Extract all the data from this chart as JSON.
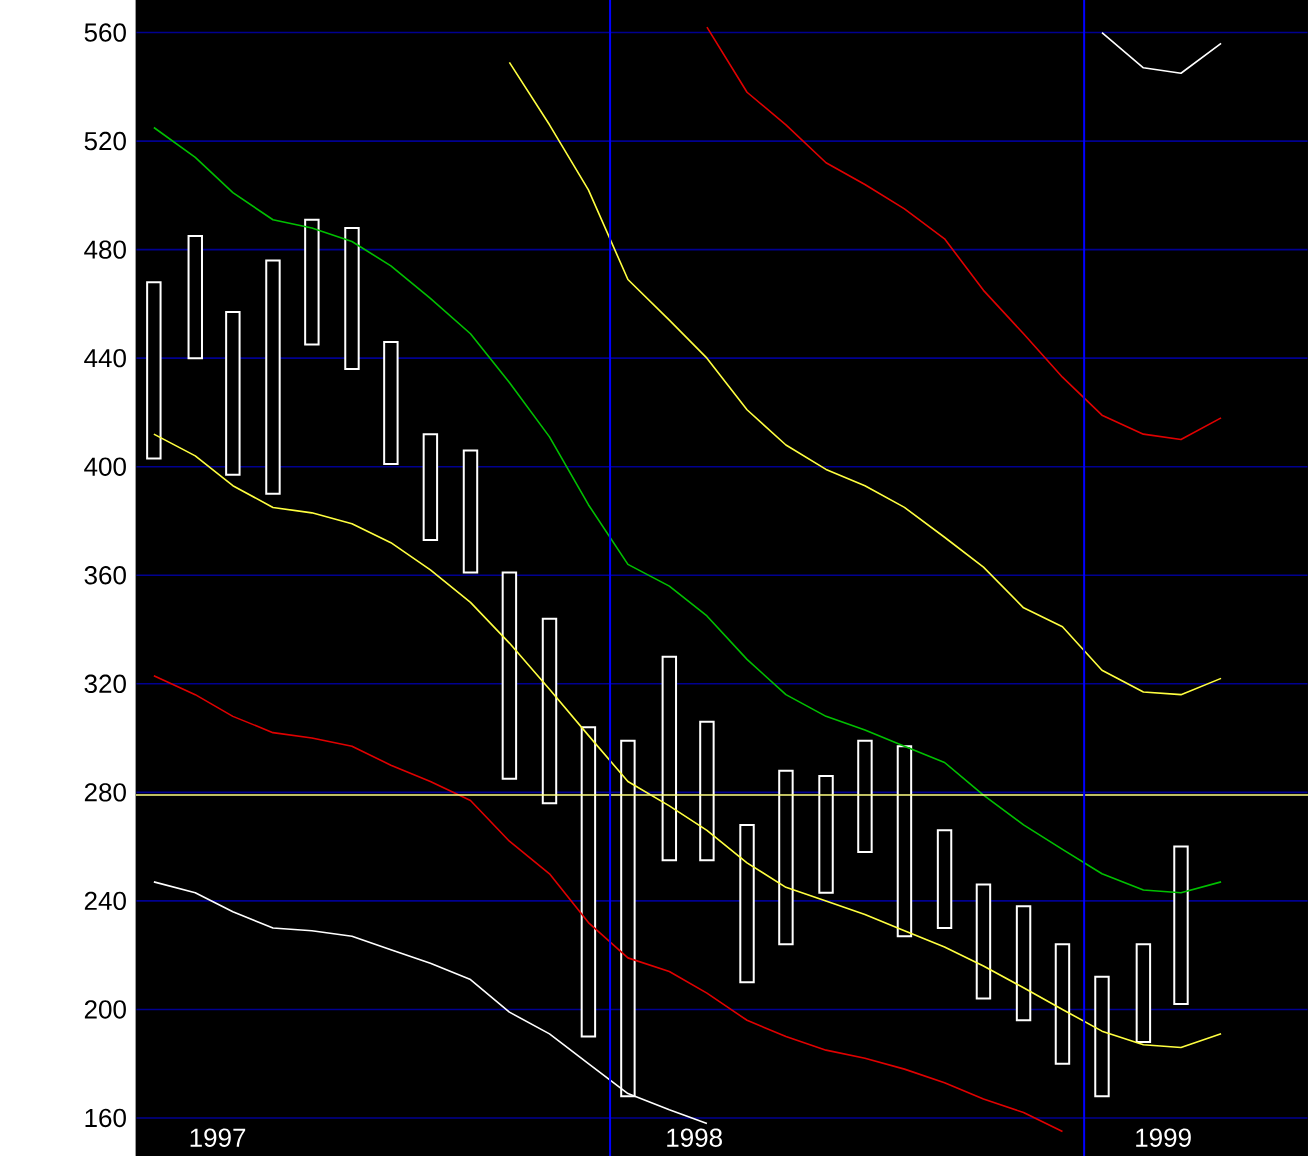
{
  "chart_data": {
    "type": "bar",
    "x": [
      "1997-01-15",
      "1997-02-15",
      "1997-03-15",
      "1997-04-15",
      "1997-05-15",
      "1997-06-15",
      "1997-07-15",
      "1997-08-15",
      "1997-09-15",
      "1997-10-15",
      "1997-11-15",
      "1997-12-15",
      "1998-01-15",
      "1998-02-15",
      "1998-03-15",
      "1998-04-15",
      "1998-05-15",
      "1998-06-15",
      "1998-07-15",
      "1998-08-15",
      "1998-09-15",
      "1998-10-15",
      "1998-11-15",
      "1998-12-15",
      "1999-01-15",
      "1999-02-15",
      "1999-03-15"
    ],
    "xlim": [
      "1997-01-01",
      "1999-06-21"
    ],
    "ylim": [
      146,
      572
    ],
    "xticks": [
      {
        "value": "1997-03-03",
        "label": "1997"
      },
      {
        "value": "1998-03-05",
        "label": "1998"
      },
      {
        "value": "1999-03-01",
        "label": "1999"
      }
    ],
    "yticks": [
      160,
      200,
      240,
      280,
      320,
      360,
      400,
      440,
      480,
      520,
      560
    ],
    "grid": "y",
    "ref_lines": [
      {
        "axis": "y",
        "value": 279,
        "color": "#ffff80"
      },
      {
        "axis": "x",
        "value": "1998-01-01",
        "color": "#0000ff"
      },
      {
        "axis": "x",
        "value": "1999-01-01",
        "color": "#0000ff"
      }
    ],
    "series": [
      {
        "color": "#ffffff",
        "base": [
          403,
          440,
          397,
          390,
          445,
          436,
          401,
          373,
          361,
          285,
          276,
          190,
          168,
          255,
          255,
          210,
          224,
          243,
          258,
          227,
          230,
          204,
          196,
          180,
          168,
          188,
          202
        ],
        "values": [
          65,
          45,
          60,
          86,
          46,
          52,
          45,
          39,
          45,
          76,
          68,
          114,
          131,
          75,
          51,
          58,
          64,
          43,
          41,
          70,
          36,
          42,
          42,
          44,
          44,
          36,
          58
        ]
      },
      {
        "type": "line",
        "color": "#00c000",
        "x": [
          "1997-01-15",
          "1997-02-15",
          "1997-03-15",
          "1997-04-15",
          "1997-05-15",
          "1997-06-15",
          "1997-07-15",
          "1997-08-15",
          "1997-09-15",
          "1997-10-15",
          "1997-11-15",
          "1997-12-15",
          "1998-01-15",
          "1998-02-15",
          "1998-03-15",
          "1998-04-15",
          "1998-05-15",
          "1998-06-15",
          "1998-07-15",
          "1998-08-15",
          "1998-09-15",
          "1998-10-15",
          "1998-11-15",
          "1998-12-15",
          "1999-01-15",
          "1999-02-15",
          "1999-03-15",
          "1999-04-15"
        ],
        "values": [
          525,
          514,
          501,
          491,
          488,
          483,
          474,
          462,
          449,
          431,
          411,
          386,
          364,
          356,
          345,
          329,
          316,
          308,
          303,
          297,
          291,
          279,
          268,
          259,
          250,
          244,
          243,
          247
        ]
      },
      {
        "type": "line",
        "color": "#ffff40",
        "x": [
          "1997-01-15",
          "1997-02-15",
          "1997-03-15",
          "1997-04-15",
          "1997-05-15",
          "1997-06-15",
          "1997-07-15",
          "1997-08-15",
          "1997-09-15",
          "1997-10-15",
          "1997-11-15",
          "1997-12-15",
          "1998-01-15",
          "1998-02-15",
          "1998-03-15",
          "1998-04-15",
          "1998-05-15",
          "1998-06-15",
          "1998-07-15",
          "1998-08-15",
          "1998-09-15",
          "1998-10-15",
          "1998-11-15",
          "1998-12-15",
          "1999-01-15",
          "1999-02-15",
          "1999-03-15",
          "1999-04-15"
        ],
        "values": [
          412,
          404,
          393,
          385,
          383,
          379,
          372,
          362,
          350,
          335,
          318,
          301,
          284,
          275,
          266,
          254,
          245,
          240,
          235,
          229,
          223,
          216,
          208,
          200,
          192,
          187,
          186,
          191
        ]
      },
      {
        "type": "line",
        "color": "#e00000",
        "x": [
          "1997-01-15",
          "1997-02-15",
          "1997-03-15",
          "1997-04-15",
          "1997-05-15",
          "1997-06-15",
          "1997-07-15",
          "1997-08-15",
          "1997-09-15",
          "1997-10-15",
          "1997-11-15",
          "1997-12-15",
          "1998-01-15",
          "1998-02-15",
          "1998-03-15",
          "1998-04-15",
          "1998-05-15",
          "1998-06-15",
          "1998-07-15",
          "1998-08-15",
          "1998-09-15",
          "1998-10-15",
          "1998-11-15",
          "1998-12-15"
        ],
        "values": [
          323,
          316,
          308,
          302,
          300,
          297,
          290,
          284,
          277,
          262,
          250,
          232,
          219,
          214,
          206,
          196,
          190,
          185,
          182,
          178,
          173,
          167,
          162,
          155
        ]
      },
      {
        "type": "line",
        "color": "#ffffff",
        "x": [
          "1997-01-15",
          "1997-02-15",
          "1997-03-15",
          "1997-04-15",
          "1997-05-15",
          "1997-06-15",
          "1997-07-15",
          "1997-08-15",
          "1997-09-15",
          "1997-10-15",
          "1997-11-15",
          "1997-12-15",
          "1998-01-15",
          "1998-02-15",
          "1998-03-15"
        ],
        "values": [
          247,
          243,
          236,
          230,
          229,
          227,
          222,
          217,
          211,
          199,
          191,
          180,
          169,
          163,
          158
        ]
      },
      {
        "type": "line",
        "color": "#ffff40",
        "x": [
          "1997-10-15",
          "1997-11-15",
          "1997-12-15",
          "1998-01-15",
          "1998-02-15",
          "1998-03-15",
          "1998-04-15",
          "1998-05-15",
          "1998-06-15",
          "1998-07-15",
          "1998-08-15",
          "1998-09-15",
          "1998-10-15",
          "1998-11-15",
          "1998-12-15",
          "1999-01-15",
          "1999-02-15",
          "1999-03-15",
          "1999-04-15"
        ],
        "values": [
          549,
          526,
          502,
          469,
          454,
          440,
          421,
          408,
          399,
          393,
          385,
          374,
          363,
          348,
          341,
          325,
          317,
          316,
          322
        ]
      },
      {
        "type": "line",
        "color": "#e00000",
        "x": [
          "1998-03-15",
          "1998-04-15",
          "1998-05-15",
          "1998-06-15",
          "1998-07-15",
          "1998-08-15",
          "1998-09-15",
          "1998-10-15",
          "1998-11-15",
          "1998-12-15",
          "1999-01-15",
          "1999-02-15",
          "1999-03-15",
          "1999-04-15"
        ],
        "values": [
          562,
          538,
          526,
          512,
          504,
          495,
          484,
          465,
          449,
          433,
          419,
          412,
          410,
          418
        ]
      },
      {
        "type": "line",
        "color": "#ffffff",
        "x": [
          "1999-01-15",
          "1999-02-15",
          "1999-03-15",
          "1999-04-15"
        ],
        "values": [
          560,
          547,
          545,
          556
        ]
      }
    ]
  }
}
